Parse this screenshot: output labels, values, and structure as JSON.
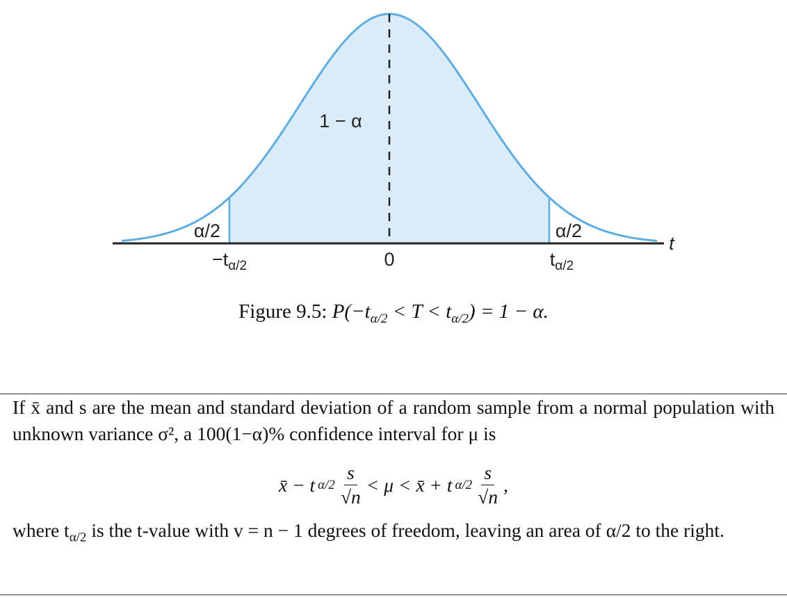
{
  "figure": {
    "center_area": "1 − α",
    "left_tail": "α/2",
    "right_tail": "α/2",
    "left_crit": {
      "main": "−t",
      "sub": "α/2"
    },
    "center": "0",
    "right_crit": {
      "main": "t",
      "sub": "α/2"
    },
    "axis": "t",
    "caption": {
      "prefix": "Figure 9.5:",
      "a": "P(−t",
      "sub1": "α/2",
      "b": " < T < t",
      "sub2": "α/2",
      "c": ") = 1 − α."
    }
  },
  "box": {
    "paragraph": "If x̄ and s are the mean and standard deviation of a random sample from a normal population with unknown variance σ², a 100(1−α)% confidence interval for μ is",
    "formula": {
      "left": "x̄ − t",
      "sub1": "α/2",
      "num1": "s",
      "den1": "√n",
      "mid": "< μ < x̄ + t",
      "sub2": "α/2",
      "num2": "s",
      "den2": "√n",
      "end": ","
    },
    "after": {
      "a": "where t",
      "sub": "α/2",
      "b": " is the t-value with v = n − 1 degrees of freedom, leaving an area of α/2 to the right."
    }
  }
}
